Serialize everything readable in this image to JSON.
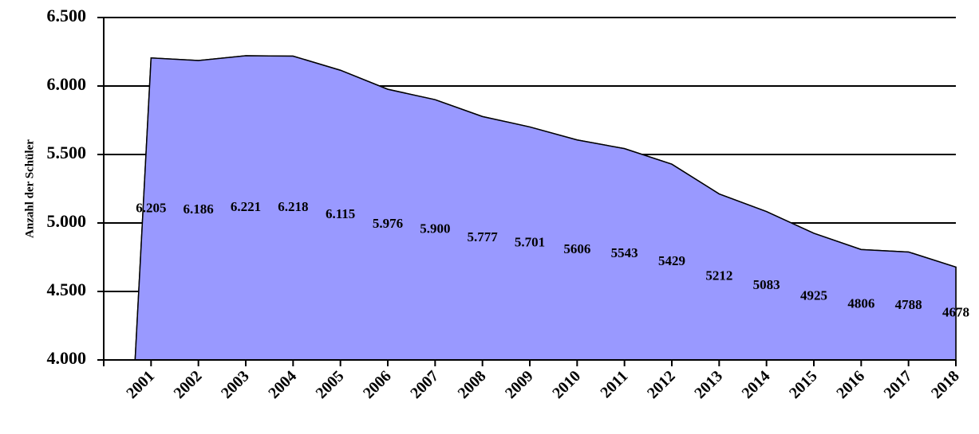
{
  "chart_data": {
    "type": "area",
    "y_label": "Anzahl der Schüler",
    "categories": [
      "2001",
      "2002",
      "2003",
      "2004",
      "2005",
      "2006",
      "2007",
      "2008",
      "2009",
      "2010",
      "2011",
      "2012",
      "2013",
      "2014",
      "2015",
      "2016",
      "2017",
      "2018"
    ],
    "values": [
      6205,
      6186,
      6221,
      6218,
      6115,
      5976,
      5900,
      5777,
      5701,
      5606,
      5543,
      5429,
      5212,
      5083,
      4925,
      4806,
      4788,
      4678
    ],
    "value_labels": [
      "6.205",
      "6.186",
      "6.221",
      "6.218",
      "6.115",
      "5.976",
      "5.900",
      "5.777",
      "5.701",
      "5606",
      "5543",
      "5429",
      "5212",
      "5083",
      "4925",
      "4806",
      "4788",
      "4678"
    ],
    "color": "#9999ff",
    "ylim": [
      4000,
      6500
    ],
    "yticks": [
      {
        "value": 4000,
        "label": "4.000"
      },
      {
        "value": 4500,
        "label": "4.500"
      },
      {
        "value": 5000,
        "label": "5.000"
      },
      {
        "value": 5500,
        "label": "5.500"
      },
      {
        "value": 6000,
        "label": "6.000"
      },
      {
        "value": 6500,
        "label": "6.500"
      }
    ],
    "grid": true
  }
}
